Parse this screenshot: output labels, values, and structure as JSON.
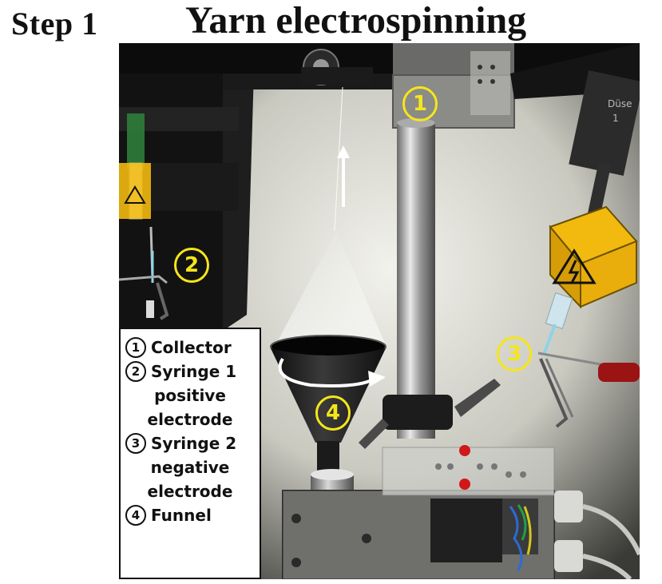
{
  "header": {
    "step": "Step 1",
    "title": "Yarn electrospinning"
  },
  "photo": {
    "nozzle_label": "Düse",
    "nozzle_number": "1"
  },
  "callouts": [
    "1",
    "2",
    "3",
    "4"
  ],
  "legend": {
    "items": [
      {
        "number": "1",
        "lines": [
          "Collector"
        ]
      },
      {
        "number": "2",
        "lines": [
          "Syringe 1",
          "positive",
          "electrode"
        ]
      },
      {
        "number": "3",
        "lines": [
          "Syringe 2",
          "negative",
          "electrode"
        ]
      },
      {
        "number": "4",
        "lines": [
          "Funnel"
        ]
      }
    ]
  },
  "colors": {
    "callout": "#f5e61a",
    "warning_box": "#f2b90f",
    "background": "#d8d8d0"
  }
}
